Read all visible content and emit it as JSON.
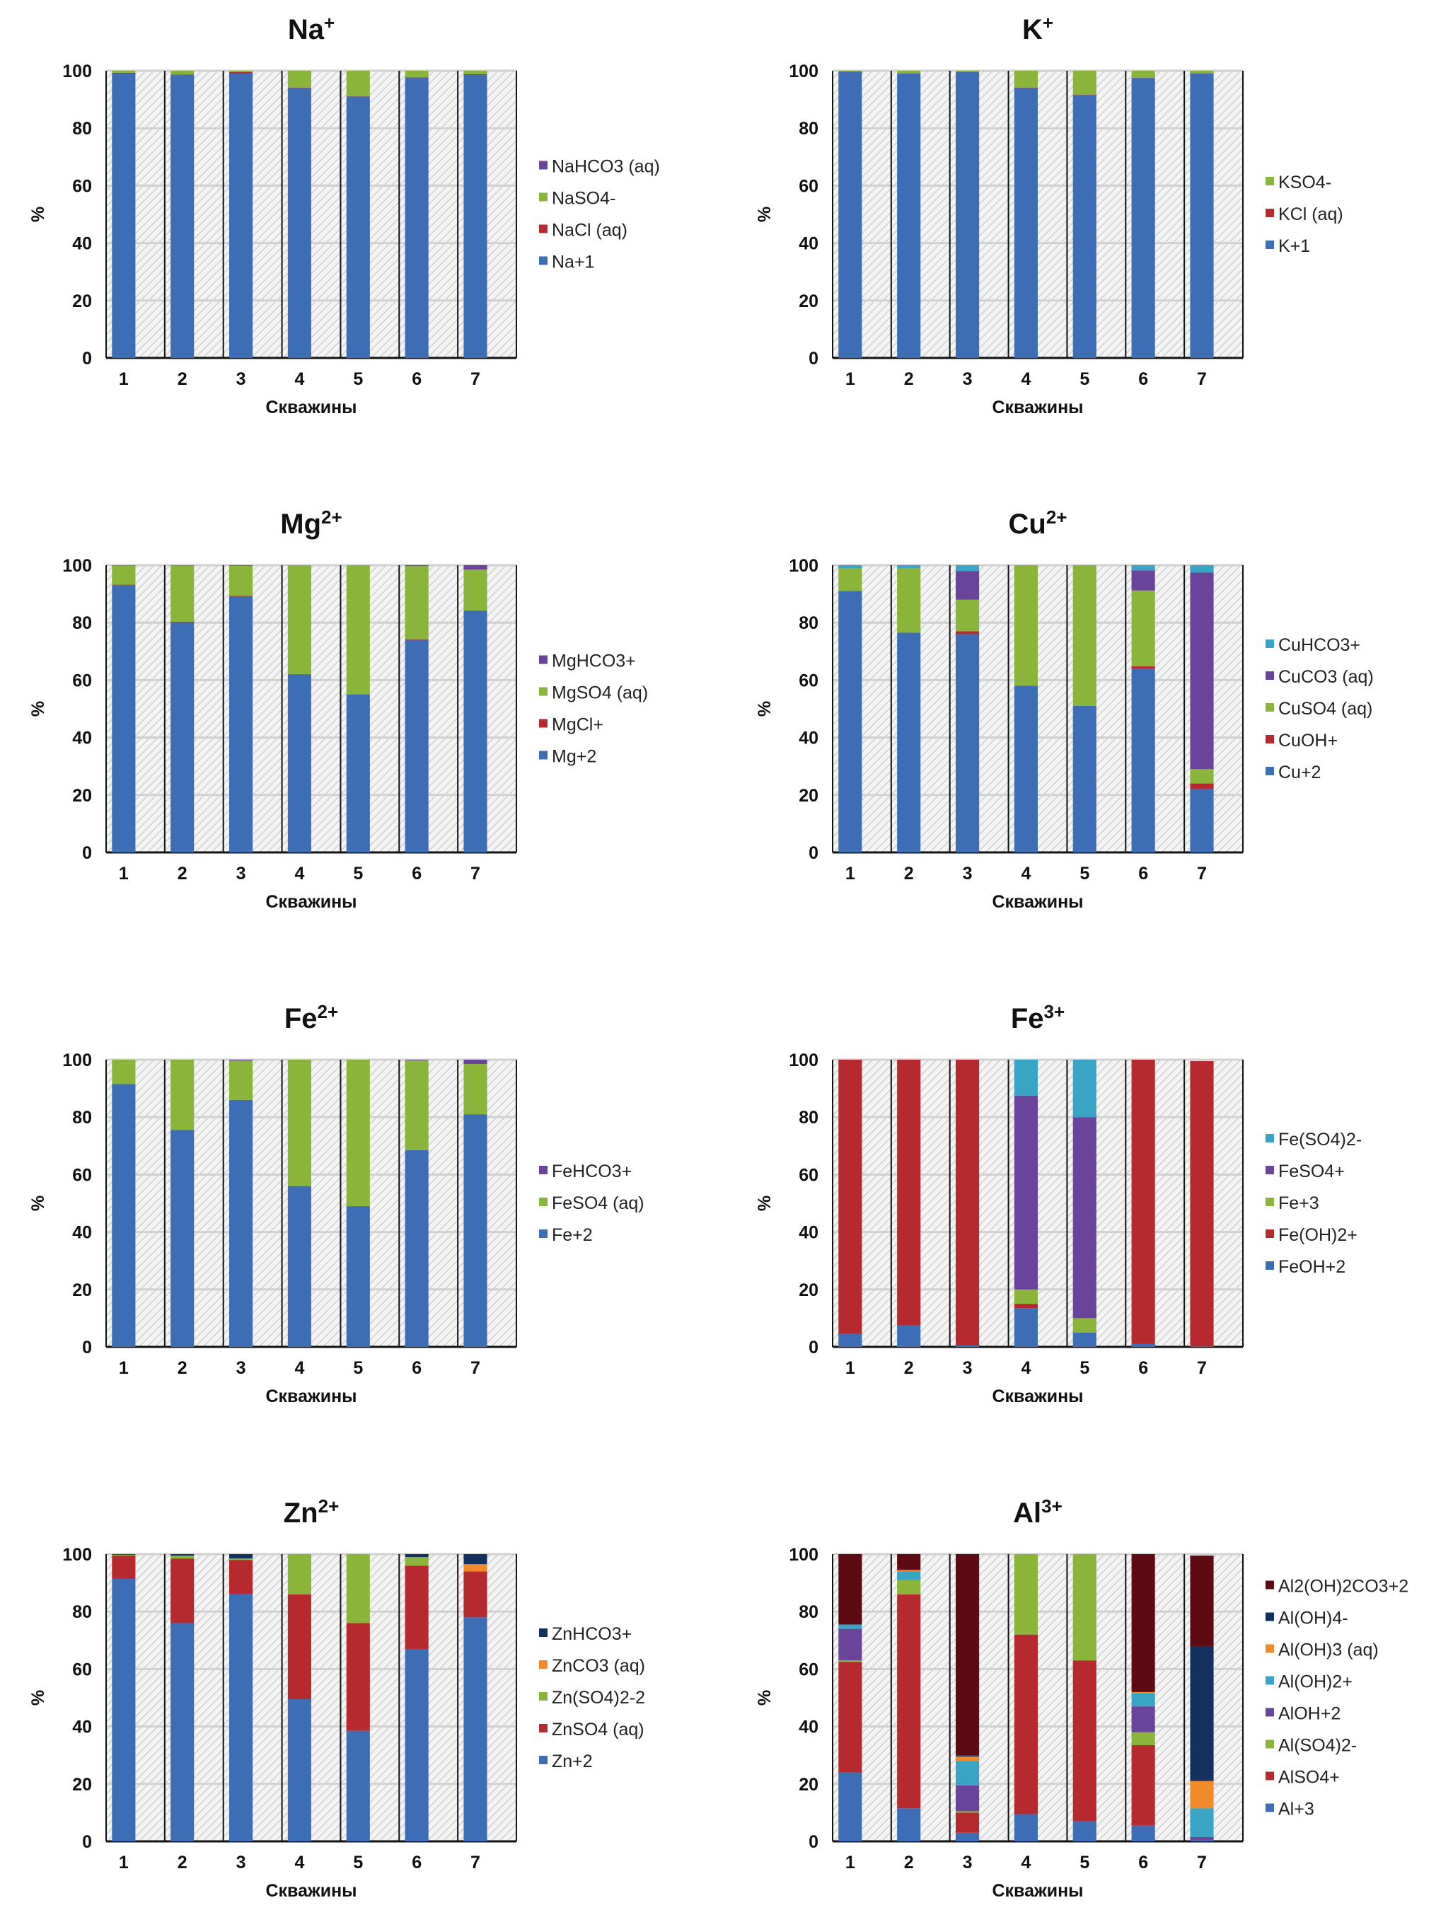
{
  "colors": {
    "blue": "#3d6db5",
    "red": "#b5292f",
    "green": "#8ab43a",
    "purple": "#6a449a",
    "cyan": "#3aa4c4",
    "orange": "#f08a2a",
    "navy": "#14305e",
    "maroon": "#5e0a12"
  },
  "chart_data": [
    {
      "type": "bar",
      "stacked": true,
      "title": "Na",
      "title_sup": "+",
      "xlabel": "Скважины",
      "ylabel": "%",
      "ylim": [
        0,
        100
      ],
      "yticks": [
        0,
        20,
        40,
        60,
        80,
        100
      ],
      "categories": [
        "1",
        "2",
        "3",
        "4",
        "5",
        "6",
        "7"
      ],
      "grid": true,
      "legend": "right",
      "series": [
        {
          "name": "Na+1",
          "color": "blue",
          "values": [
            99,
            98.5,
            99,
            94,
            91,
            97.5,
            98.5
          ]
        },
        {
          "name": "NaCl (aq)",
          "color": "red",
          "values": [
            0.3,
            0.2,
            0.5,
            0.1,
            0.1,
            0.2,
            0.3
          ]
        },
        {
          "name": "NaSO4-",
          "color": "green",
          "values": [
            0.7,
            1.3,
            0.5,
            5.9,
            8.9,
            2.3,
            1.2
          ]
        },
        {
          "name": "NaHCO3 (aq)",
          "color": "purple",
          "values": [
            0,
            0,
            0,
            0,
            0,
            0,
            0
          ]
        }
      ]
    },
    {
      "type": "bar",
      "stacked": true,
      "title": "K",
      "title_sup": "+",
      "xlabel": "Скважины",
      "ylabel": "%",
      "ylim": [
        0,
        100
      ],
      "yticks": [
        0,
        20,
        40,
        60,
        80,
        100
      ],
      "categories": [
        "1",
        "2",
        "3",
        "4",
        "5",
        "6",
        "7"
      ],
      "grid": true,
      "legend": "right",
      "series": [
        {
          "name": "K+1",
          "color": "blue",
          "values": [
            99.7,
            99,
            99.5,
            94,
            91.5,
            97.5,
            99
          ]
        },
        {
          "name": "KCl (aq)",
          "color": "red",
          "values": [
            0.1,
            0.1,
            0.1,
            0.1,
            0.1,
            0.1,
            0.1
          ]
        },
        {
          "name": "KSO4-",
          "color": "green",
          "values": [
            0.2,
            0.9,
            0.4,
            5.9,
            8.4,
            2.4,
            0.9
          ]
        }
      ]
    },
    {
      "type": "bar",
      "stacked": true,
      "title": "Mg",
      "title_sup": "2+",
      "xlabel": "Скважины",
      "ylabel": "%",
      "ylim": [
        0,
        100
      ],
      "yticks": [
        0,
        20,
        40,
        60,
        80,
        100
      ],
      "categories": [
        "1",
        "2",
        "3",
        "4",
        "5",
        "6",
        "7"
      ],
      "grid": true,
      "legend": "right",
      "series": [
        {
          "name": "Mg+2",
          "color": "blue",
          "values": [
            93,
            80,
            89,
            62,
            55,
            74,
            84
          ]
        },
        {
          "name": "MgCl+",
          "color": "red",
          "values": [
            0.2,
            0.3,
            0.3,
            0.1,
            0.1,
            0.2,
            0.2
          ]
        },
        {
          "name": "MgSO4 (aq)",
          "color": "green",
          "values": [
            6.7,
            19.6,
            10.5,
            37.9,
            44.9,
            25.5,
            14.3
          ]
        },
        {
          "name": "MgHCO3+",
          "color": "purple",
          "values": [
            0.1,
            0.1,
            0.2,
            0,
            0,
            0.3,
            1.5
          ]
        }
      ]
    },
    {
      "type": "bar",
      "stacked": true,
      "title": "Cu",
      "title_sup": "2+",
      "xlabel": "Скважины",
      "ylabel": "%",
      "ylim": [
        0,
        100
      ],
      "yticks": [
        0,
        20,
        40,
        60,
        80,
        100
      ],
      "categories": [
        "1",
        "2",
        "3",
        "4",
        "5",
        "6",
        "7"
      ],
      "grid": true,
      "legend": "right",
      "series": [
        {
          "name": "Cu+2",
          "color": "blue",
          "values": [
            91,
            76.5,
            76,
            58,
            51,
            64,
            22
          ]
        },
        {
          "name": "CuOH+",
          "color": "red",
          "values": [
            0,
            0,
            1,
            0,
            0,
            0.8,
            2
          ]
        },
        {
          "name": "CuSO4 (aq)",
          "color": "green",
          "values": [
            8,
            22.5,
            11,
            42,
            49,
            26.4,
            5
          ]
        },
        {
          "name": "CuCO3 (aq)",
          "color": "purple",
          "values": [
            0,
            0,
            10,
            0,
            0,
            7,
            68.5
          ]
        },
        {
          "name": "CuHCO3+",
          "color": "cyan",
          "values": [
            1,
            1,
            2,
            0,
            0,
            1.8,
            2.5
          ]
        }
      ]
    },
    {
      "type": "bar",
      "stacked": true,
      "title": "Fe",
      "title_sup": "2+",
      "xlabel": "Скважины",
      "ylabel": "%",
      "ylim": [
        0,
        100
      ],
      "yticks": [
        0,
        20,
        40,
        60,
        80,
        100
      ],
      "categories": [
        "1",
        "2",
        "3",
        "4",
        "5",
        "6",
        "7"
      ],
      "grid": true,
      "legend": "right",
      "series": [
        {
          "name": "Fe+2",
          "color": "blue",
          "values": [
            91.5,
            75.5,
            86,
            56,
            49,
            68.5,
            81
          ]
        },
        {
          "name": "FeSO4 (aq)",
          "color": "green",
          "values": [
            8.5,
            24.5,
            13.7,
            44,
            51,
            31.3,
            17.5
          ]
        },
        {
          "name": "FeHCO3+",
          "color": "purple",
          "values": [
            0,
            0,
            0.3,
            0,
            0,
            0.2,
            1.5
          ]
        }
      ]
    },
    {
      "type": "bar",
      "stacked": true,
      "title": "Fe",
      "title_sup": "3+",
      "xlabel": "Скважины",
      "ylabel": "%",
      "ylim": [
        0,
        100
      ],
      "yticks": [
        0,
        20,
        40,
        60,
        80,
        100
      ],
      "categories": [
        "1",
        "2",
        "3",
        "4",
        "5",
        "6",
        "7"
      ],
      "grid": true,
      "legend": "right",
      "series": [
        {
          "name": "FeOH+2",
          "color": "blue",
          "values": [
            4.5,
            7.5,
            0.5,
            13.5,
            5,
            1,
            0.3
          ]
        },
        {
          "name": "Fe(OH)2+",
          "color": "red",
          "values": [
            95.5,
            92.5,
            99.5,
            1.5,
            0,
            99,
            99.2
          ]
        },
        {
          "name": "Fe+3",
          "color": "green",
          "values": [
            0,
            0,
            0,
            5,
            5,
            0,
            0
          ]
        },
        {
          "name": "FeSO4+",
          "color": "purple",
          "values": [
            0,
            0,
            0,
            67.5,
            70,
            0,
            0
          ]
        },
        {
          "name": "Fe(SO4)2-",
          "color": "cyan",
          "values": [
            0,
            0,
            0,
            12.5,
            20,
            0,
            0
          ]
        }
      ]
    },
    {
      "type": "bar",
      "stacked": true,
      "title": "Zn",
      "title_sup": "2+",
      "xlabel": "Скважины",
      "ylabel": "%",
      "ylim": [
        0,
        100
      ],
      "yticks": [
        0,
        20,
        40,
        60,
        80,
        100
      ],
      "categories": [
        "1",
        "2",
        "3",
        "4",
        "5",
        "6",
        "7"
      ],
      "grid": true,
      "legend": "right",
      "series": [
        {
          "name": "Zn+2",
          "color": "blue",
          "values": [
            91.5,
            76,
            86,
            49.5,
            38.5,
            67,
            78
          ]
        },
        {
          "name": "ZnSO4 (aq)",
          "color": "red",
          "values": [
            8,
            22.5,
            12,
            36.5,
            37.5,
            29,
            16
          ]
        },
        {
          "name": "Zn(SO4)2-2",
          "color": "green",
          "values": [
            0.3,
            1,
            0.5,
            14,
            24,
            3,
            0
          ]
        },
        {
          "name": "ZnCO3 (aq)",
          "color": "orange",
          "values": [
            0,
            0,
            0,
            0,
            0,
            0,
            2.5
          ]
        },
        {
          "name": "ZnHCO3+",
          "color": "navy",
          "values": [
            0.2,
            0.5,
            1.5,
            0,
            0,
            1,
            3.5
          ]
        }
      ]
    },
    {
      "type": "bar",
      "stacked": true,
      "title": "Al",
      "title_sup": "3+",
      "xlabel": "Скважины",
      "ylabel": "%",
      "ylim": [
        0,
        100
      ],
      "yticks": [
        0,
        20,
        40,
        60,
        80,
        100
      ],
      "categories": [
        "1",
        "2",
        "3",
        "4",
        "5",
        "6",
        "7"
      ],
      "grid": true,
      "legend": "right",
      "series": [
        {
          "name": "Al+3",
          "color": "blue",
          "values": [
            24,
            11.5,
            3,
            9.5,
            7,
            5.5,
            0.5
          ]
        },
        {
          "name": "AlSO4+",
          "color": "red",
          "values": [
            38.5,
            74.5,
            7,
            62.5,
            56,
            28,
            0
          ]
        },
        {
          "name": "Al(SO4)2-",
          "color": "green",
          "values": [
            0.5,
            5,
            0.5,
            28,
            37,
            4.5,
            0
          ]
        },
        {
          "name": "AlOH+2",
          "color": "purple",
          "values": [
            11,
            0,
            9,
            0,
            0,
            9,
            1
          ]
        },
        {
          "name": "Al(OH)2+",
          "color": "cyan",
          "values": [
            1.5,
            3,
            8.5,
            0,
            0,
            4.5,
            10
          ]
        },
        {
          "name": "Al(OH)3 (aq)",
          "color": "orange",
          "values": [
            0,
            0.5,
            1.5,
            0,
            0,
            0.5,
            9.5
          ]
        },
        {
          "name": "Al(OH)4-",
          "color": "navy",
          "values": [
            0,
            0,
            0.5,
            0,
            0,
            0,
            47
          ]
        },
        {
          "name": "Al2(OH)2CO3+2",
          "color": "maroon",
          "values": [
            24.5,
            5.5,
            70,
            0,
            0,
            48,
            31.5
          ]
        }
      ]
    }
  ]
}
